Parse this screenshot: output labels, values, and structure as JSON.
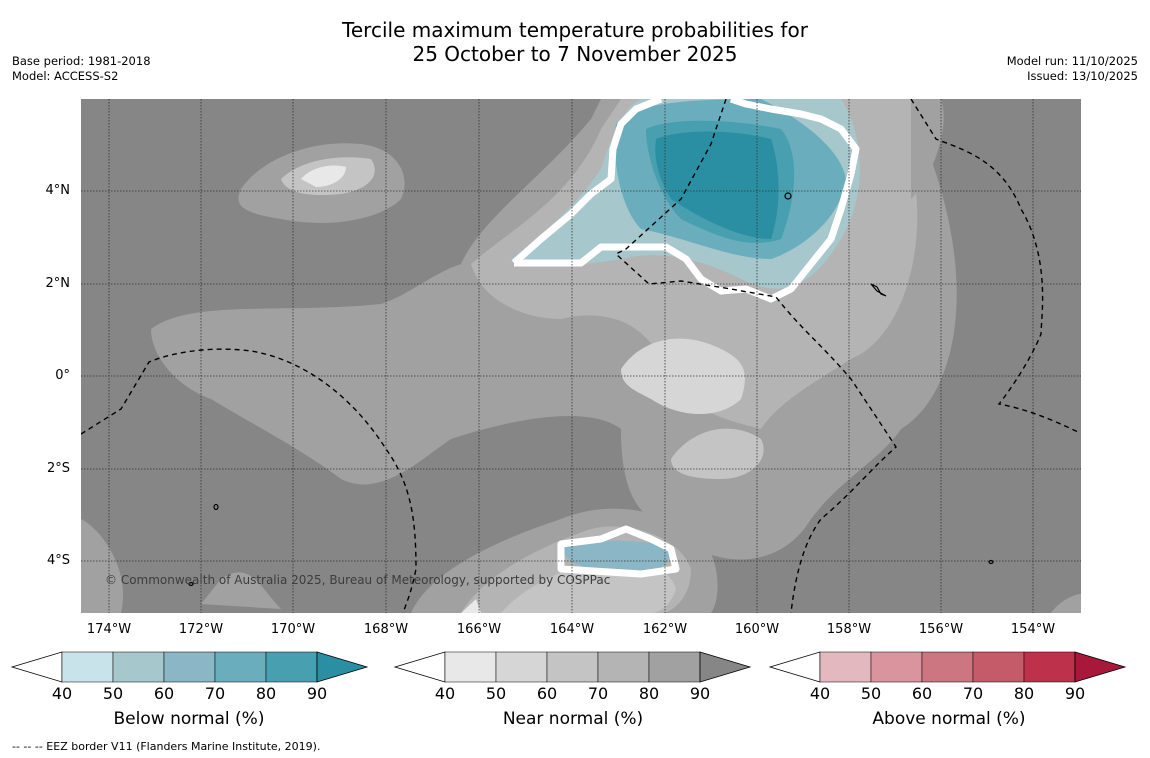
{
  "title_line1": "Tercile maximum temperature probabilities for",
  "title_line2": "25 October to 7 November 2025",
  "base_period": "Base period: 1981-2018",
  "model": "Model: ACCESS-S2",
  "model_run": "Model run: 11/10/2025",
  "issued": "Issued: 13/10/2025",
  "copyright": "© Commonwealth of Australia 2025, Bureau of Meteorology, supported by COSPPac",
  "footnote": "--  --  -- EEZ border V11 (Flanders Marine Institute, 2019).",
  "lat_labels": [
    "4°N",
    "2°N",
    "0°",
    "2°S",
    "4°S"
  ],
  "lon_labels": [
    "174°W",
    "172°W",
    "170°W",
    "168°W",
    "166°W",
    "164°W",
    "162°W",
    "160°W",
    "158°W",
    "156°W",
    "154°W"
  ],
  "colorbars": [
    {
      "title": "Below normal (%)",
      "ticks": [
        "40",
        "50",
        "60",
        "70",
        "80",
        "90"
      ],
      "colors": [
        "#c9e3ea",
        "#a6c7cc",
        "#8ab6c5",
        "#6aadbc",
        "#479fb0",
        "#2b8fa3"
      ],
      "under": "#ffffff"
    },
    {
      "title": "Near normal (%)",
      "ticks": [
        "40",
        "50",
        "60",
        "70",
        "80",
        "90"
      ],
      "colors": [
        "#e8e8e8",
        "#d6d6d6",
        "#c4c4c4",
        "#b4b4b4",
        "#a1a1a1",
        "#868686"
      ],
      "under": "#ffffff"
    },
    {
      "title": "Above normal (%)",
      "ticks": [
        "40",
        "50",
        "60",
        "70",
        "80",
        "90"
      ],
      "colors": [
        "#e3b8bf",
        "#d9949d",
        "#cc7681",
        "#c55a68",
        "#bd314b",
        "#a8183b"
      ],
      "under": "#ffffff"
    }
  ]
}
